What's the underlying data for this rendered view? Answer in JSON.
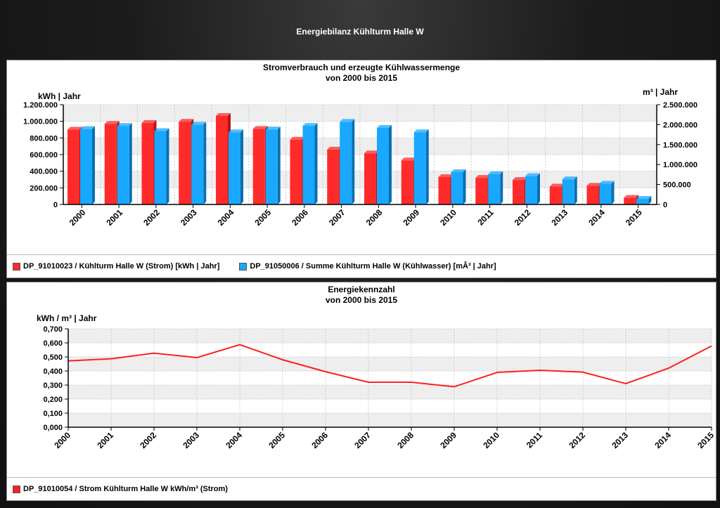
{
  "page_title": "Energiebilanz Kühlturm Halle W",
  "colors": {
    "red": "#ff2b2b",
    "red_dark": "#b31515",
    "blue": "#1aa8ff",
    "blue_dark": "#0a6fb0",
    "line": "#ff1f1f"
  },
  "chart_data": [
    {
      "type": "bar",
      "title": "Stromverbrauch und erzeugte Kühlwassermenge",
      "subtitle": "von 2000 bis 2015",
      "ylabel_left": "kWh | Jahr",
      "ylabel_right": "m³ | Jahr",
      "categories": [
        "2000",
        "2001",
        "2002",
        "2003",
        "2004",
        "2005",
        "2006",
        "2007",
        "2008",
        "2009",
        "2010",
        "2011",
        "2012",
        "2013",
        "2014",
        "2015"
      ],
      "ylim_left": [
        0,
        1200000
      ],
      "ylim_right": [
        0,
        2500000
      ],
      "yticks_left": [
        "0",
        "200.000",
        "400.000",
        "600.000",
        "800.000",
        "1.000.000",
        "1.200.000"
      ],
      "yticks_right": [
        "0",
        "500.000",
        "1.000.000",
        "1.500.000",
        "2.000.000",
        "2.500.000"
      ],
      "grid": true,
      "legend_position": "bottom",
      "series": [
        {
          "name": "DP_91010023 / Kühlturm Halle W (Strom) [kWh | Jahr]",
          "axis": "left",
          "color": "red",
          "values": [
            900000,
            970000,
            980000,
            995000,
            1065000,
            910000,
            780000,
            660000,
            615000,
            530000,
            330000,
            320000,
            295000,
            215000,
            225000,
            80000
          ]
        },
        {
          "name": "DP_91050006 / Summe Kühlturm Halle W (Kühlwasser) [mÂ³ | Jahr]",
          "axis": "right",
          "color": "blue",
          "values": [
            1890000,
            1970000,
            1840000,
            2000000,
            1810000,
            1880000,
            1970000,
            2070000,
            1920000,
            1810000,
            810000,
            760000,
            710000,
            630000,
            520000,
            140000
          ]
        }
      ]
    },
    {
      "type": "line",
      "title": "Energiekennzahl",
      "subtitle": "von 2000 bis 2015",
      "ylabel": "kWh / m³ | Jahr",
      "categories": [
        "2000",
        "2001",
        "2002",
        "2003",
        "2004",
        "2005",
        "2006",
        "2007",
        "2008",
        "2009",
        "2010",
        "2011",
        "2012",
        "2013",
        "2014",
        "2015"
      ],
      "ylim": [
        0,
        0.7
      ],
      "yticks": [
        "0,000",
        "0,100",
        "0,200",
        "0,300",
        "0,400",
        "0,500",
        "0,600",
        "0,700"
      ],
      "grid": true,
      "legend_position": "bottom",
      "series": [
        {
          "name": "DP_91010054 / Strom Kühlturm Halle W kWh/m³ (Strom)",
          "color": "line",
          "values": [
            0.472,
            0.487,
            0.527,
            0.495,
            0.587,
            0.48,
            0.395,
            0.32,
            0.32,
            0.288,
            0.39,
            0.405,
            0.392,
            0.31,
            0.42,
            0.578
          ]
        }
      ]
    }
  ]
}
